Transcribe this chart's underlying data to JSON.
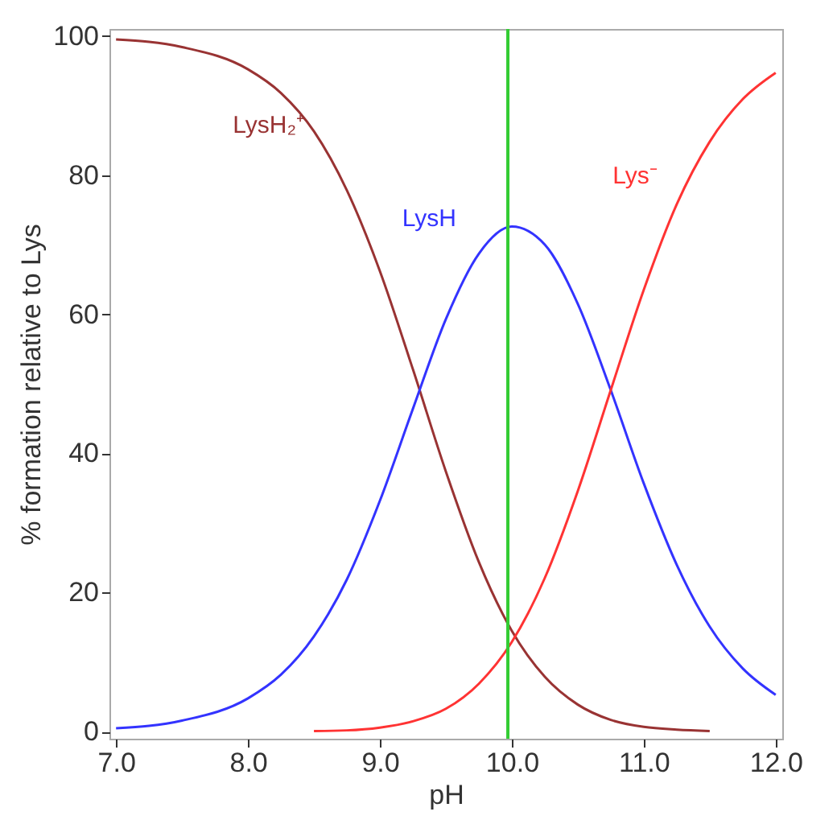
{
  "chart_data": {
    "type": "line",
    "xlabel": "pH",
    "ylabel": "% formation relative to Lys",
    "x": [
      7.0,
      7.5,
      8.0,
      8.25,
      8.5,
      8.75,
      9.0,
      9.25,
      9.5,
      9.75,
      10.0,
      10.25,
      10.5,
      10.75,
      11.0,
      11.25,
      11.5,
      11.75,
      12.0
    ],
    "series": [
      {
        "name": "LysH₂⁺",
        "color": "#993333",
        "values": [
          99.5,
          98.4,
          95.2,
          91.8,
          86.3,
          77.8,
          66.2,
          52.1,
          37.4,
          24.4,
          14.5,
          7.9,
          3.9,
          1.7,
          0.7,
          0.3,
          0.1,
          null,
          null
        ]
      },
      {
        "name": "LysH",
        "color": "#3333ff",
        "values": [
          0.5,
          1.6,
          4.8,
          8.2,
          13.7,
          21.9,
          33.2,
          46.4,
          59.3,
          68.7,
          72.6,
          70.0,
          61.5,
          49.1,
          35.7,
          24.0,
          15.1,
          9.1,
          5.3
        ]
      },
      {
        "name": "Lys⁻",
        "color": "#ff3333",
        "values": [
          null,
          null,
          null,
          null,
          0.1,
          0.2,
          0.6,
          1.5,
          3.3,
          6.9,
          12.9,
          22.1,
          34.6,
          49.1,
          63.5,
          75.8,
          84.8,
          90.9,
          94.7
        ]
      }
    ],
    "ref_lines": [
      {
        "axis": "x",
        "value": 9.97,
        "color": "#33cc33"
      }
    ],
    "xlim": [
      6.95,
      12.05
    ],
    "ylim": [
      -1,
      101
    ],
    "xticks": [
      {
        "value": 7,
        "label": "7.0"
      },
      {
        "value": 8,
        "label": "8.0"
      },
      {
        "value": 9,
        "label": "9.0"
      },
      {
        "value": 10,
        "label": "10.0"
      },
      {
        "value": 11,
        "label": "11.0"
      },
      {
        "value": 12,
        "label": "12.0"
      }
    ],
    "yticks": [
      0,
      20,
      40,
      60,
      80,
      100
    ],
    "grid": false,
    "legend": false
  }
}
